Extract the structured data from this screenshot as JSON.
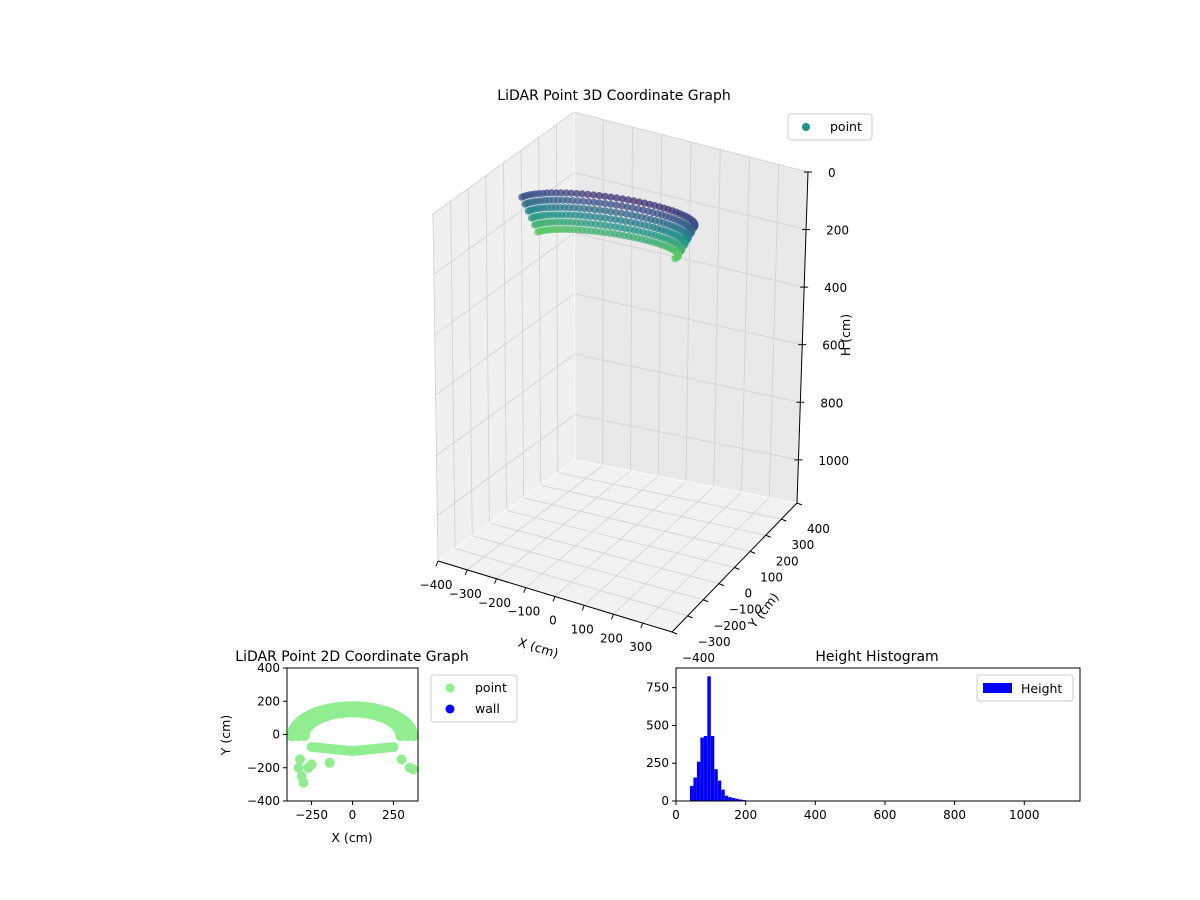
{
  "figure": {
    "background": "#ffffff"
  },
  "chart_data": [
    {
      "type": "scatter",
      "projection": "3d",
      "title": "LiDAR Point 3D Coordinate Graph",
      "xlabel": "X (cm)",
      "ylabel": "Y (cm)",
      "zlabel": "H (cm)",
      "xlim": [
        -400,
        400
      ],
      "ylim": [
        -400,
        400
      ],
      "zlim": [
        0,
        1150
      ],
      "zaxis_inverted": true,
      "xticks": [
        "−400",
        "−300",
        "−200",
        "−100",
        "0",
        "100",
        "200",
        "300"
      ],
      "yticks": [
        "−400",
        "−300",
        "−200",
        "−100",
        "0",
        "100",
        "200",
        "300",
        "400"
      ],
      "zticks": [
        "0",
        "200",
        "400",
        "600",
        "800",
        "1000"
      ],
      "grid": true,
      "legend": {
        "placement": "upper-right",
        "entries": [
          {
            "label": "point",
            "color": "#21918c"
          }
        ]
      },
      "colormap": "viridis",
      "series": [
        {
          "name": "point",
          "description_of_data": "semicircular arc of points, radius about 160 cm, heights 50–200 cm",
          "radius_cm": 160,
          "height_range_cm": [
            50,
            200
          ]
        }
      ]
    },
    {
      "type": "scatter",
      "title": "LiDAR Point 2D Coordinate Graph",
      "xlabel": "X (cm)",
      "ylabel": "Y (cm)",
      "xlim": [
        -400,
        400
      ],
      "ylim": [
        -400,
        400
      ],
      "xticks": [
        "−250",
        "0",
        "250"
      ],
      "yticks": [
        "400",
        "200",
        "0",
        "−200",
        "−400"
      ],
      "legend": {
        "placement": "outside-right",
        "entries": [
          {
            "label": "point",
            "color": "#90ee90"
          },
          {
            "label": "wall",
            "color": "#0000ff"
          }
        ]
      },
      "series": [
        {
          "name": "point",
          "color": "#90ee90"
        },
        {
          "name": "wall",
          "color": "#0000ff",
          "values": []
        }
      ]
    },
    {
      "type": "bar",
      "title": "Height Histogram",
      "xlabel": "",
      "ylabel": "",
      "xlim": [
        0,
        1160
      ],
      "ylim": [
        0,
        880
      ],
      "xticks": [
        "0",
        "200",
        "400",
        "600",
        "800",
        "1000"
      ],
      "yticks": [
        "0",
        "250",
        "500",
        "750"
      ],
      "legend": {
        "placement": "upper-right",
        "entries": [
          {
            "label": "Height",
            "color": "#0000ff"
          }
        ]
      },
      "bin_width": 10,
      "series": [
        {
          "name": "Height",
          "color": "#0000ff",
          "bins": [
            {
              "x0": 40,
              "x1": 50,
              "count": 100
            },
            {
              "x0": 50,
              "x1": 60,
              "count": 155
            },
            {
              "x0": 60,
              "x1": 70,
              "count": 260
            },
            {
              "x0": 70,
              "x1": 80,
              "count": 420
            },
            {
              "x0": 80,
              "x1": 90,
              "count": 430
            },
            {
              "x0": 90,
              "x1": 100,
              "count": 825
            },
            {
              "x0": 100,
              "x1": 110,
              "count": 430
            },
            {
              "x0": 110,
              "x1": 120,
              "count": 210
            },
            {
              "x0": 120,
              "x1": 130,
              "count": 135
            },
            {
              "x0": 130,
              "x1": 140,
              "count": 75
            },
            {
              "x0": 140,
              "x1": 150,
              "count": 35
            },
            {
              "x0": 150,
              "x1": 160,
              "count": 25
            },
            {
              "x0": 160,
              "x1": 170,
              "count": 20
            },
            {
              "x0": 170,
              "x1": 180,
              "count": 15
            },
            {
              "x0": 180,
              "x1": 190,
              "count": 10
            },
            {
              "x0": 190,
              "x1": 200,
              "count": 6
            }
          ]
        }
      ]
    }
  ]
}
